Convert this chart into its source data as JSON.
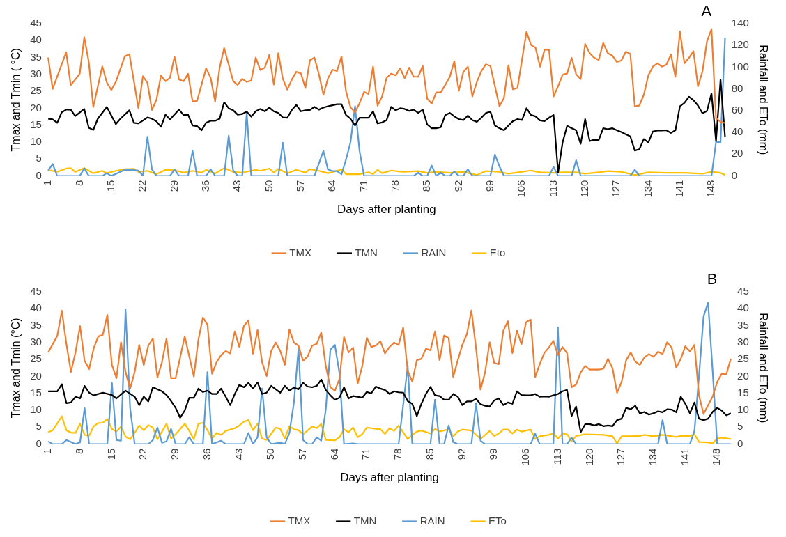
{
  "chart_data": [
    {
      "type": "line",
      "title": "A",
      "xlabel": "Days after planting",
      "ylabel": "Tmax and Tmin ( °C)",
      "y2label": "Rainfall and ETo (mm)",
      "xlim": [
        0.5,
        151.5
      ],
      "xticks": [
        1,
        8,
        15,
        22,
        29,
        36,
        43,
        50,
        57,
        64,
        71,
        78,
        85,
        92,
        99,
        106,
        113,
        120,
        127,
        134,
        141,
        148
      ],
      "ylim": [
        0,
        45
      ],
      "yticks": [
        0,
        5,
        10,
        15,
        20,
        25,
        30,
        35,
        40,
        45
      ],
      "y2lim": [
        0,
        140
      ],
      "y2ticks": [
        0,
        20,
        40,
        60,
        80,
        100,
        120,
        140
      ],
      "legend": "bottom",
      "series": [
        {
          "name": "TMX",
          "color": "#ed7d31",
          "x": [
            1,
            2,
            5,
            6,
            8,
            9,
            10,
            11,
            13,
            14,
            15,
            16,
            18,
            19,
            21,
            22,
            23,
            24,
            25,
            26,
            27,
            28,
            29,
            30,
            31,
            32,
            33,
            34,
            36,
            37,
            38,
            39,
            40,
            42,
            43,
            44,
            45,
            46,
            47,
            48,
            49,
            50,
            51,
            52,
            53,
            54,
            55,
            56,
            57,
            58,
            59,
            60,
            61,
            62,
            63,
            64,
            65,
            66,
            67,
            68,
            69,
            70,
            71,
            72,
            73,
            74,
            75,
            76,
            77,
            78,
            79,
            80,
            81,
            82,
            83,
            84,
            85,
            86,
            87,
            88,
            89,
            90,
            91,
            92,
            93,
            94,
            95,
            96,
            97,
            98,
            99,
            101,
            102,
            103,
            104,
            105,
            107,
            108,
            109,
            110,
            111,
            112,
            113,
            114,
            115,
            116,
            117,
            118,
            119,
            120,
            121,
            122,
            123,
            124,
            125,
            126,
            127,
            128,
            129,
            130,
            131,
            132,
            133,
            134,
            135,
            136,
            137,
            138,
            139,
            140,
            141,
            142,
            143,
            144,
            145,
            146,
            147,
            148,
            149,
            150,
            151
          ],
          "values": [
            35,
            25.7,
            36.6,
            26.8,
            30.2,
            41,
            33.7,
            20.4,
            32.4,
            27.6,
            25.4,
            27.8,
            35.4,
            36,
            20,
            29.5,
            27.5,
            19.5,
            22.5,
            29.7,
            28,
            29,
            35.3,
            28.5,
            28,
            30.2,
            22,
            22.2,
            31.8,
            29,
            22,
            32,
            37.8,
            28,
            26.9,
            28.7,
            27.8,
            28.2,
            35,
            31.3,
            32,
            35.8,
            27,
            36.3,
            28.7,
            25.5,
            28.5,
            30.8,
            30.3,
            26,
            34.2,
            35,
            30,
            24,
            28.8,
            31.4,
            31,
            35.3,
            25,
            20.3,
            18.8,
            21.5,
            24.8,
            24.2,
            32.3,
            20.8,
            23.5,
            29,
            30.2,
            29.7,
            31.8,
            28.9,
            32,
            29.3,
            29.3,
            32.5,
            22.8,
            21.4,
            24.7,
            24.7,
            26.9,
            29.3,
            33.9,
            25.2,
            30.7,
            32.3,
            23.5,
            27.8,
            31,
            33,
            32.5,
            20.6,
            23,
            32.7,
            25.6,
            26,
            42.6,
            38.7,
            37.9,
            32.3,
            37.3,
            37.3,
            23.5,
            26.5,
            29.9,
            30.3,
            34.9,
            30.1,
            28.6,
            39,
            36.3,
            34.9,
            34.3,
            39.3,
            36.3,
            35.6,
            33.7,
            34.1,
            36.7,
            36.1,
            20.6,
            20.8,
            24,
            29.7,
            32.3,
            33.3,
            32.3,
            32.9,
            35.9,
            29.3,
            42.7,
            33.3,
            34.9,
            36.9,
            26.5,
            30.9,
            39.8,
            43.4,
            17,
            16,
            15.6
          ]
        },
        {
          "name": "TMN",
          "color": "#000000",
          "x": [
            1,
            2,
            3,
            4,
            5,
            6,
            7,
            9,
            10,
            11,
            12,
            14,
            16,
            17,
            19,
            20,
            21,
            23,
            24,
            25,
            26,
            27,
            28,
            30,
            31,
            32,
            33,
            34,
            35,
            36,
            37,
            38,
            39,
            40,
            41,
            42,
            43,
            44,
            45,
            46,
            47,
            48,
            49,
            50,
            51,
            52,
            53,
            54,
            55,
            56,
            57,
            58,
            59,
            60,
            61,
            62,
            63,
            64,
            65,
            66,
            67,
            68,
            69,
            70,
            71,
            72,
            73,
            74,
            75,
            76,
            77,
            78,
            79,
            80,
            81,
            82,
            83,
            84,
            85,
            86,
            87,
            88,
            89,
            90,
            91,
            92,
            93,
            94,
            95,
            96,
            97,
            98,
            99,
            100,
            101,
            102,
            103,
            104,
            105,
            106,
            107,
            108,
            109,
            110,
            111,
            112,
            113,
            114,
            115,
            116,
            117,
            118,
            119,
            120,
            121,
            122,
            123,
            124,
            125,
            126,
            127,
            128,
            129,
            130,
            131,
            132,
            133,
            134,
            135,
            136,
            137,
            138,
            139,
            140,
            141,
            142,
            143,
            144,
            145,
            146,
            147,
            148,
            149,
            150,
            151
          ],
          "values": [
            16.9,
            16.7,
            15.7,
            18.8,
            19.6,
            19.6,
            17.7,
            19.8,
            14.2,
            13.6,
            16.9,
            20.4,
            15.3,
            16.9,
            19.4,
            15.7,
            15.5,
            17.3,
            16.9,
            16.1,
            14.5,
            18.1,
            16.7,
            19.6,
            18,
            18.1,
            14.9,
            14.7,
            13.5,
            15.7,
            16.3,
            16.3,
            16.9,
            21.8,
            20,
            19.4,
            18.1,
            18.3,
            19,
            17.5,
            19.1,
            19.8,
            19.1,
            20.2,
            19.1,
            18.6,
            17.3,
            17.2,
            19.5,
            21,
            19.1,
            19.4,
            19.5,
            20.4,
            19.6,
            20.2,
            20.6,
            20.9,
            21.2,
            21.2,
            18,
            16.9,
            14.9,
            17.2,
            17.2,
            17.2,
            19.1,
            15.5,
            15.8,
            16.5,
            20.4,
            19.4,
            20,
            19.8,
            19.2,
            19.6,
            18.6,
            19.6,
            15.2,
            14.1,
            14.1,
            14.4,
            18,
            18.6,
            17.6,
            16.8,
            16.5,
            17.8,
            16.5,
            16,
            17.2,
            18.6,
            19,
            14.9,
            14.1,
            13.5,
            14.9,
            16.2,
            16.8,
            16.5,
            20,
            18,
            17.6,
            16.4,
            16.2,
            17.2,
            18,
            1,
            9.9,
            14.8,
            14.1,
            13.5,
            9.5,
            16.8,
            10.3,
            10.7,
            10.6,
            14.1,
            13.8,
            14.1,
            13.5,
            13,
            12.3,
            11.7,
            7.5,
            7.9,
            10.9,
            9.9,
            13.1,
            13.4,
            13.4,
            13.5,
            12.7,
            13.5,
            20.6,
            21.6,
            23.4,
            22.4,
            20.8,
            18.5,
            19.2,
            24.4,
            10.3,
            28.5,
            11.5
          ]
        },
        {
          "name": "RAIN",
          "color": "#5b9bd5",
          "axis": "y2",
          "x": [
            1,
            2,
            3,
            8,
            9,
            10,
            13,
            14,
            15,
            18,
            19,
            21,
            22,
            23,
            24,
            25,
            28,
            29,
            30,
            32,
            33,
            34,
            36,
            37,
            38,
            40,
            41,
            42,
            43,
            44,
            45,
            46,
            52,
            53,
            54,
            60,
            62,
            63,
            64,
            65,
            66,
            67,
            68,
            69,
            70,
            71,
            82,
            83,
            84,
            85,
            86,
            87,
            88,
            89,
            90,
            91,
            92,
            93,
            94,
            95,
            99,
            100,
            101,
            102,
            112,
            113,
            114,
            117,
            118,
            119,
            130,
            131,
            132,
            148,
            149,
            150,
            151
          ],
          "values": [
            5,
            11,
            0,
            0,
            7,
            0,
            0,
            2.5,
            0,
            5.6,
            5.6,
            5,
            0,
            36,
            6,
            0,
            0,
            6,
            0,
            0,
            23,
            0,
            0,
            6,
            0,
            0,
            37,
            5,
            0,
            0,
            58,
            0,
            0,
            30.5,
            0,
            0,
            23,
            6,
            4.5,
            4.5,
            1.5,
            15,
            31,
            64,
            23,
            0,
            0,
            3,
            0,
            0,
            9.5,
            0,
            3,
            0,
            0,
            4,
            0,
            0,
            6,
            0,
            0,
            19.6,
            8.8,
            0,
            0,
            8.3,
            0,
            0,
            14.5,
            0,
            0,
            5.8,
            0,
            0,
            31,
            31,
            127
          ]
        },
        {
          "name": "Eto",
          "color": "#ffc000",
          "axis": "y2",
          "x": [
            1,
            3,
            5,
            6,
            7,
            9,
            11,
            13,
            14,
            16,
            18,
            20,
            21,
            23,
            25,
            27,
            29,
            31,
            33,
            35,
            36,
            38,
            40,
            42,
            44,
            47,
            48,
            50,
            51,
            52,
            54,
            56,
            58,
            59,
            61,
            63,
            65,
            66,
            67,
            70,
            72,
            73,
            74,
            75,
            77,
            79,
            80,
            83,
            85,
            87,
            90,
            93,
            96,
            98,
            101,
            103,
            106,
            108,
            110,
            113,
            115,
            118,
            120,
            123,
            125,
            128,
            131,
            134,
            138,
            142,
            146,
            148,
            150,
            151
          ],
          "values": [
            5.6,
            3.7,
            6.8,
            7.2,
            3.7,
            7.2,
            2.5,
            4.7,
            2.5,
            4.7,
            6.2,
            6.5,
            3.7,
            4.7,
            1.6,
            5.6,
            5.3,
            3.1,
            4.7,
            3.1,
            5.6,
            2.2,
            7.2,
            3.7,
            3.1,
            5.6,
            4.7,
            6.8,
            3.1,
            6.5,
            2.5,
            5.6,
            3.1,
            6.2,
            4.7,
            2.5,
            4.7,
            6.2,
            1.6,
            1.6,
            3.4,
            1.6,
            5.6,
            2.5,
            5,
            4,
            3.8,
            4.5,
            2.8,
            3.8,
            2.8,
            3.8,
            0.8,
            4.5,
            3.8,
            2,
            3.8,
            5,
            3.3,
            2.8,
            3.3,
            3.3,
            2,
            3.3,
            4.5,
            3.8,
            0.8,
            3.3,
            2.8,
            2.8,
            2,
            3.8,
            2.8,
            0.8
          ]
        }
      ]
    },
    {
      "type": "line",
      "title": "B",
      "xlabel": "Days after planting",
      "ylabel": "Tmax and Tmin (°C)",
      "y2label": "Rainfall and ETo (mm)",
      "xlim": [
        0.5,
        151.5
      ],
      "xticks": [
        1,
        8,
        15,
        22,
        29,
        36,
        43,
        50,
        57,
        64,
        71,
        78,
        85,
        92,
        99,
        106,
        113,
        120,
        127,
        134,
        141,
        148
      ],
      "ylim": [
        0,
        45
      ],
      "yticks": [
        0,
        5,
        10,
        15,
        20,
        25,
        30,
        35,
        40,
        45
      ],
      "y2lim": [
        0,
        45
      ],
      "y2ticks": [
        0,
        5,
        10,
        15,
        20,
        25,
        30,
        35,
        40,
        45
      ],
      "legend": "bottom",
      "series": [
        {
          "name": "TMX",
          "color": "#ed7d31",
          "x": [
            1,
            3,
            4,
            5,
            6,
            7,
            8,
            9,
            10,
            11,
            12,
            13,
            14,
            15,
            16,
            17,
            18,
            19,
            20,
            21,
            22,
            23,
            24,
            25,
            26,
            27,
            28,
            29,
            31,
            33,
            34,
            35,
            36,
            37,
            38,
            39,
            40,
            41,
            42,
            43,
            44,
            45,
            46,
            47,
            48,
            49,
            50,
            51,
            52,
            53,
            54,
            55,
            56,
            57,
            58,
            59,
            60,
            61,
            62,
            63,
            64,
            65,
            66,
            67,
            68,
            69,
            70,
            71,
            72,
            73,
            74,
            75,
            76,
            77,
            78,
            79,
            80,
            81,
            82,
            83,
            84,
            85,
            86,
            87,
            88,
            89,
            90,
            91,
            92,
            93,
            94,
            95,
            96,
            97,
            98,
            99,
            100,
            101,
            102,
            103,
            104,
            105,
            106,
            107,
            108,
            109,
            110,
            111,
            112,
            113,
            114,
            115,
            116,
            117,
            118,
            119,
            120,
            122,
            123,
            124,
            125,
            126,
            127,
            128,
            129,
            130,
            131,
            132,
            133,
            134,
            135,
            136,
            137,
            138,
            139,
            140,
            141,
            142,
            143,
            144,
            145,
            146,
            147,
            148,
            149,
            150,
            151
          ],
          "values": [
            27.1,
            32,
            39.4,
            29.6,
            21.3,
            27.1,
            34.9,
            24.6,
            22.2,
            28.3,
            31.8,
            32.3,
            38.2,
            23.4,
            19.5,
            30.1,
            21.3,
            16.4,
            21.3,
            29.3,
            23.4,
            29.1,
            31.2,
            19.7,
            24.2,
            31.2,
            19.5,
            19.5,
            31.8,
            20,
            30.8,
            37.4,
            35.3,
            20.8,
            24.2,
            26.3,
            27.5,
            26.8,
            33.3,
            28.7,
            34.9,
            36.5,
            26.7,
            33.7,
            24.2,
            20.1,
            27.5,
            30,
            27.5,
            23.4,
            33.9,
            30,
            29.1,
            24.6,
            25.9,
            29.1,
            29.6,
            33,
            23,
            16.8,
            15.8,
            19.3,
            31.6,
            27.1,
            28.5,
            17.9,
            23,
            31.4,
            28.7,
            29.1,
            30.4,
            26.8,
            28.7,
            30,
            29.3,
            34.4,
            21.6,
            18.5,
            24.8,
            25.2,
            28.2,
            27.7,
            33.3,
            24.8,
            32.1,
            31.3,
            19.8,
            24.8,
            29.3,
            32.5,
            39.5,
            28.5,
            16.1,
            21.2,
            30.1,
            24,
            23.6,
            33.5,
            36.3,
            26.9,
            33.5,
            29.5,
            36,
            36.8,
            19.8,
            23.6,
            26.9,
            28.5,
            30.5,
            26.3,
            28.7,
            26.9,
            16.8,
            17.6,
            21.2,
            23.1,
            22,
            22,
            22.3,
            25.2,
            22.4,
            15.2,
            18.4,
            24.8,
            27.1,
            24.4,
            23.4,
            25.6,
            26.6,
            25.8,
            27.3,
            26.6,
            30.1,
            28.5,
            22.6,
            25.2,
            28.9,
            27.4,
            29.3,
            14.4,
            8.9,
            11.5,
            14,
            18.4,
            20.8,
            20.6,
            25.2
          ]
        },
        {
          "name": "TMN",
          "color": "#000000",
          "x": [
            1,
            3,
            4,
            5,
            6,
            7,
            8,
            9,
            10,
            11,
            13,
            15,
            16,
            18,
            20,
            21,
            22,
            23,
            24,
            26,
            27,
            28,
            29,
            30,
            31,
            32,
            33,
            34,
            35,
            36,
            37,
            38,
            39,
            40,
            41,
            42,
            43,
            44,
            45,
            46,
            47,
            48,
            49,
            50,
            51,
            52,
            53,
            54,
            55,
            56,
            57,
            58,
            59,
            60,
            61,
            62,
            63,
            64,
            65,
            66,
            67,
            68,
            69,
            70,
            71,
            72,
            73,
            74,
            75,
            76,
            77,
            78,
            79,
            80,
            81,
            82,
            83,
            84,
            85,
            86,
            87,
            88,
            89,
            90,
            91,
            92,
            93,
            94,
            95,
            96,
            97,
            98,
            99,
            100,
            101,
            102,
            103,
            104,
            105,
            106,
            107,
            108,
            109,
            110,
            111,
            112,
            113,
            114,
            115,
            116,
            117,
            118,
            119,
            120,
            121,
            122,
            123,
            124,
            125,
            126,
            127,
            128,
            129,
            130,
            131,
            132,
            133,
            134,
            135,
            136,
            137,
            138,
            139,
            140,
            141,
            142,
            143,
            144,
            145,
            146,
            147,
            148,
            149,
            150,
            151
          ],
          "values": [
            15.6,
            15.6,
            17.7,
            12.1,
            12.3,
            14,
            13.5,
            17.2,
            15.2,
            14.4,
            15.2,
            14.5,
            13.5,
            15.8,
            14,
            11.5,
            14,
            12.6,
            16.8,
            15.6,
            14.5,
            12.7,
            10.7,
            7.8,
            9.9,
            13.7,
            13.7,
            16.4,
            15.4,
            15.8,
            14.8,
            14.8,
            16.4,
            14,
            11.5,
            14.8,
            17.5,
            16.8,
            18.1,
            16.4,
            18.2,
            14.8,
            15.2,
            17.2,
            16.2,
            15.2,
            17.2,
            15.8,
            16.7,
            16.2,
            18.1,
            17,
            16.8,
            17.2,
            19.1,
            16,
            14.4,
            13.1,
            13.7,
            16.8,
            13.5,
            14.2,
            14,
            13.7,
            15.4,
            15,
            17,
            16.4,
            16,
            14.8,
            15.6,
            15.3,
            15.2,
            12.7,
            11.9,
            8.3,
            11.9,
            14.8,
            16.9,
            14.4,
            14.2,
            13.1,
            13.1,
            14.8,
            14,
            11.5,
            12.6,
            12.6,
            13.4,
            11.8,
            11.3,
            11.1,
            12.9,
            13.5,
            11.5,
            12.3,
            11.9,
            15.6,
            14.5,
            14.4,
            14.4,
            14.8,
            14,
            14.1,
            14,
            14.4,
            14.8,
            15.6,
            16,
            8.3,
            11.1,
            3.5,
            5.9,
            5.9,
            5.5,
            5.9,
            5.3,
            5.5,
            5.3,
            7.1,
            7.5,
            10.7,
            10.3,
            11.3,
            9.1,
            9.5,
            8.7,
            9.1,
            9.7,
            9.4,
            10.3,
            10.2,
            9.4,
            14,
            11.9,
            9.1,
            12.3,
            7.5,
            7.1,
            7.5,
            9.5,
            10.7,
            9.9,
            8.5,
            9.1
          ]
        },
        {
          "name": "RAIN",
          "color": "#5b9bd5",
          "axis": "y2",
          "x": [
            1,
            2,
            4,
            5,
            7,
            8,
            9,
            10,
            14,
            15,
            16,
            17,
            18,
            19,
            20,
            23,
            24,
            25,
            26,
            27,
            28,
            29,
            31,
            32,
            33,
            35,
            36,
            37,
            39,
            40,
            44,
            45,
            46,
            47,
            48,
            49,
            50,
            52,
            53,
            54,
            55,
            56,
            57,
            58,
            59,
            60,
            61,
            62,
            63,
            64,
            65,
            66,
            68,
            69,
            78,
            80,
            81,
            85,
            86,
            87,
            88,
            89,
            90,
            91,
            94,
            95,
            96,
            97,
            107,
            108,
            109,
            112,
            113,
            114,
            115,
            116,
            117,
            135,
            136,
            137,
            142,
            143,
            144,
            145,
            146,
            147,
            148,
            151
          ],
          "values": [
            0.8,
            0,
            0,
            1.2,
            0,
            0.5,
            10.7,
            0,
            0,
            18.1,
            1.2,
            1,
            39.7,
            10.7,
            0,
            0,
            1.2,
            4.9,
            0.4,
            0.8,
            4.5,
            0,
            0,
            2,
            0,
            0,
            21.3,
            0,
            1,
            0,
            0,
            3.3,
            0,
            2,
            16.4,
            2,
            0,
            0.4,
            0,
            3.3,
            12.3,
            28.2,
            1.2,
            0,
            0,
            2,
            1,
            10.3,
            27.9,
            29.3,
            20.9,
            0,
            0.2,
            0,
            0,
            23.1,
            0,
            0,
            13.1,
            0,
            0,
            5.5,
            0.6,
            0,
            0,
            12.1,
            1,
            0,
            0,
            3.1,
            0,
            0,
            34.5,
            0,
            0,
            1.9,
            0,
            0,
            7.1,
            0,
            0,
            3.9,
            20,
            37.7,
            41.8,
            21.6,
            0,
            0
          ]
        },
        {
          "name": "ETo",
          "color": "#ffc000",
          "axis": "y2",
          "x": [
            1,
            2,
            4,
            5,
            6,
            7,
            8,
            9,
            10,
            11,
            12,
            13,
            14,
            15,
            16,
            17,
            18,
            19,
            20,
            21,
            22,
            23,
            24,
            25,
            26,
            27,
            28,
            29,
            31,
            32,
            33,
            34,
            35,
            36,
            37,
            38,
            39,
            40,
            42,
            43,
            44,
            45,
            46,
            47,
            48,
            49,
            51,
            52,
            53,
            54,
            55,
            56,
            57,
            59,
            60,
            61,
            62,
            64,
            65,
            66,
            67,
            68,
            69,
            70,
            71,
            73,
            74,
            75,
            76,
            77,
            78,
            80,
            81,
            82,
            83,
            85,
            86,
            87,
            89,
            90,
            91,
            92,
            94,
            96,
            97,
            98,
            99,
            100,
            101,
            102,
            103,
            104,
            105,
            107,
            108,
            109,
            111,
            112,
            113,
            114,
            115,
            116,
            117,
            119,
            123,
            125,
            126,
            127,
            129,
            131,
            132,
            134,
            136,
            138,
            139,
            140,
            142,
            143,
            144,
            146,
            147,
            148,
            149,
            151
          ],
          "values": [
            3.5,
            4.1,
            8.2,
            4.1,
            3.4,
            3.3,
            6,
            2.7,
            2.5,
            5.3,
            6.2,
            6.3,
            7.4,
            4.5,
            3.7,
            5.2,
            2.2,
            1.4,
            3.3,
            5.5,
            4.1,
            5.6,
            4.9,
            1.4,
            3.7,
            6,
            1.6,
            2.9,
            6,
            3.9,
            1.4,
            6,
            6.3,
            4.1,
            1.6,
            3.3,
            2.7,
            3.9,
            4.7,
            5.5,
            6.6,
            7.1,
            4.1,
            6,
            1.6,
            1.2,
            4.9,
            4.5,
            1.6,
            5.3,
            4.4,
            4.1,
            2.9,
            5.2,
            4.7,
            6,
            1.2,
            1.1,
            2,
            4.4,
            3.5,
            4.9,
            2,
            2.9,
            4.9,
            4.5,
            4.4,
            3,
            4.7,
            3.9,
            5.5,
            1.5,
            2.7,
            3.7,
            4,
            3.1,
            4.5,
            3.7,
            4.4,
            2.3,
            3.7,
            4.3,
            4,
            1.5,
            2.7,
            3.9,
            2.4,
            3.1,
            4.3,
            4.3,
            3.1,
            4.3,
            3.7,
            4.3,
            1.5,
            2.3,
            2.7,
            3.2,
            1.6,
            3.1,
            2.9,
            0.8,
            2.4,
            2.9,
            2.7,
            2.3,
            0.2,
            2.3,
            2.3,
            2.4,
            2.7,
            2.3,
            2.7,
            2.3,
            2.1,
            2.4,
            2.4,
            2.9,
            0.6,
            0.5,
            0.2,
            1.6,
            1.9,
            1.5
          ]
        }
      ]
    }
  ]
}
